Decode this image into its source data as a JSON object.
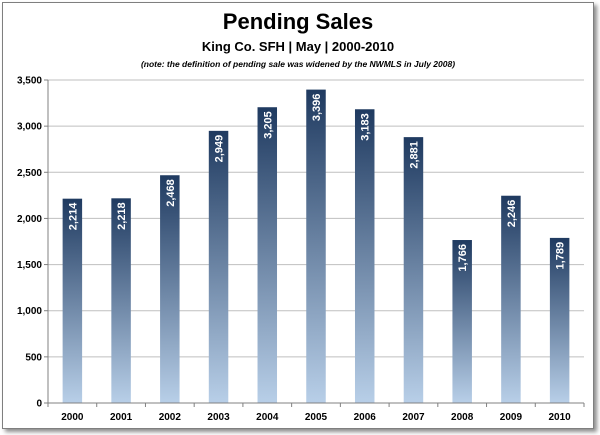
{
  "chart_data": {
    "type": "bar",
    "title": "Pending Sales",
    "subtitle": "King Co. SFH | May | 2000-2010",
    "note": "(note: the definition of pending sale was widened by the NWMLS in July 2008)",
    "categories": [
      "2000",
      "2001",
      "2002",
      "2003",
      "2004",
      "2005",
      "2006",
      "2007",
      "2008",
      "2009",
      "2010"
    ],
    "values": [
      2214,
      2218,
      2468,
      2949,
      3205,
      3396,
      3183,
      2881,
      1766,
      2246,
      1789
    ],
    "value_labels": [
      "2,214",
      "2,218",
      "2,468",
      "2,949",
      "3,205",
      "3,396",
      "3,183",
      "2,881",
      "1,766",
      "2,246",
      "1,789"
    ],
    "ylim": [
      0,
      3500
    ],
    "yticks": [
      0,
      500,
      1000,
      1500,
      2000,
      2500,
      3000,
      3500
    ],
    "ytick_labels": [
      "0",
      "500",
      "1,000",
      "1,500",
      "2,000",
      "2,500",
      "3,000",
      "3,500"
    ],
    "xlabel": "",
    "ylabel": "",
    "grid": true,
    "colors": {
      "bar_top": "#1f3a60",
      "bar_bottom": "#b8cfe8",
      "grid": "#bfbfbf",
      "axis": "#808080",
      "label": "#ffffff"
    }
  }
}
